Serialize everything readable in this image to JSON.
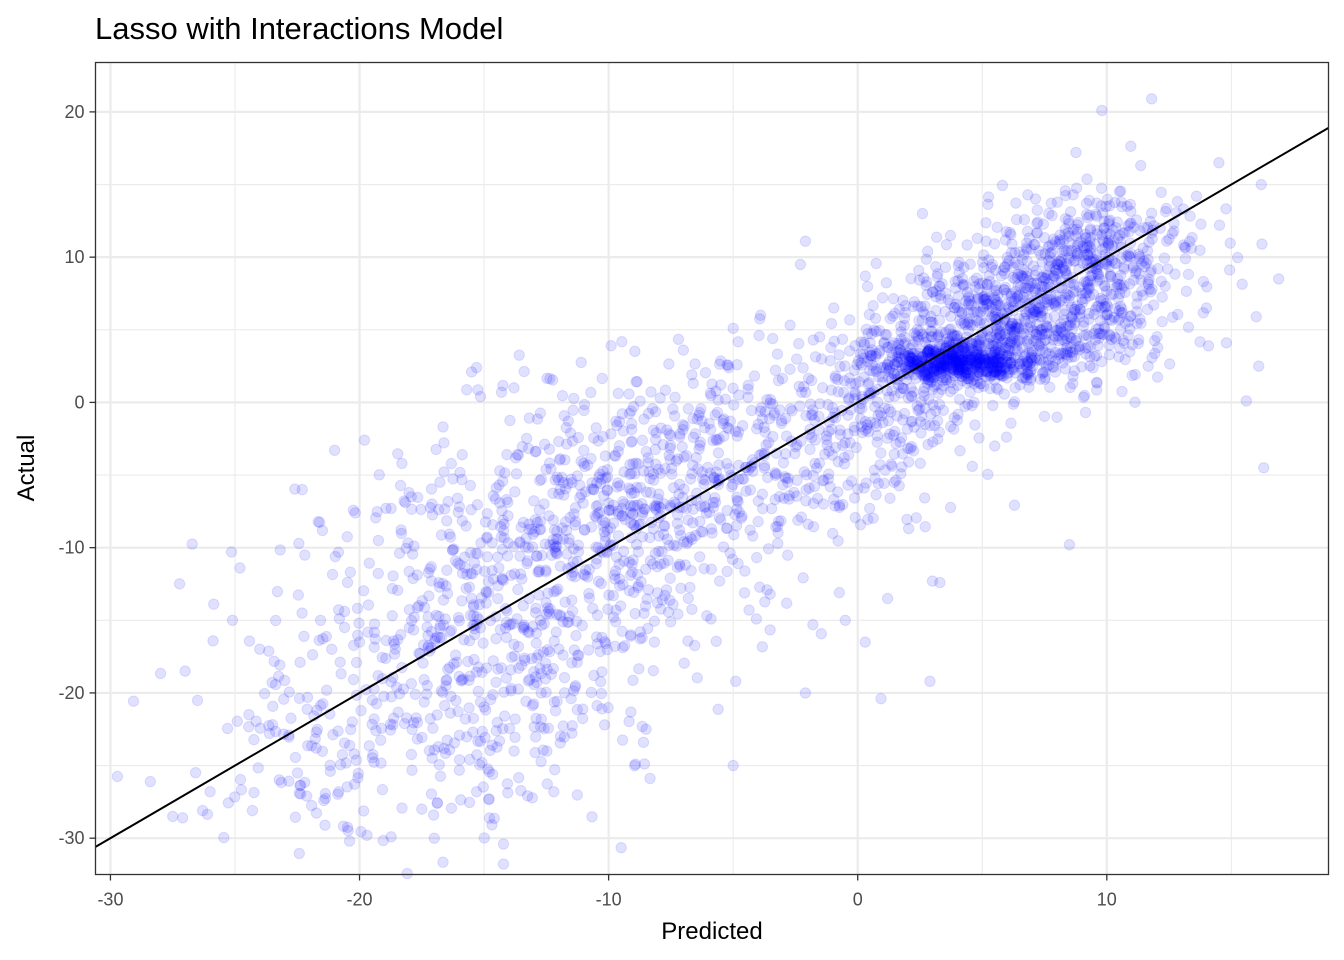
{
  "chart_data": {
    "type": "scatter",
    "title": "Lasso with Interactions Model",
    "xlabel": "Predicted",
    "ylabel": "Actual",
    "xlim": [
      -30.6,
      18.9
    ],
    "ylim": [
      -32.5,
      23.4
    ],
    "x_ticks": [
      -30,
      -20,
      -10,
      0,
      10
    ],
    "y_ticks": [
      -30,
      -20,
      -10,
      0,
      10,
      20
    ],
    "x_tick_labels": [
      "-30",
      "-20",
      "-10",
      "0",
      "10"
    ],
    "y_tick_labels": [
      "-30",
      "-20",
      "-10",
      "0",
      "10",
      "20"
    ],
    "grid": true,
    "point_color": "#0000ff",
    "point_opacity": 0.12,
    "reference_line": {
      "slope": 1,
      "intercept": 0,
      "color": "#000000"
    },
    "clusters": [
      {
        "center": [
          4.0,
          2.8
        ],
        "spread": [
          1.6,
          0.7
        ],
        "count": 520
      },
      {
        "center": [
          6.5,
          5.5
        ],
        "spread": [
          2.6,
          2.4
        ],
        "count": 700
      },
      {
        "center": [
          9.5,
          10.0
        ],
        "spread": [
          2.2,
          2.3
        ],
        "count": 380
      },
      {
        "center": [
          1.5,
          1.0
        ],
        "spread": [
          2.0,
          3.0
        ],
        "count": 180
      },
      {
        "center": [
          -3.0,
          -3.0
        ],
        "spread": [
          3.5,
          3.5
        ],
        "count": 300
      },
      {
        "center": [
          -9.0,
          -7.0
        ],
        "spread": [
          3.5,
          4.0
        ],
        "count": 450
      },
      {
        "center": [
          -14.0,
          -13.0
        ],
        "spread": [
          4.0,
          5.5
        ],
        "count": 480
      },
      {
        "center": [
          -18.0,
          -22.0
        ],
        "spread": [
          4.0,
          4.0
        ],
        "count": 300
      }
    ],
    "points": [
      [
        11.8,
        20.9
      ],
      [
        9.8,
        20.1
      ],
      [
        16.2,
        15.0
      ],
      [
        16.9,
        8.5
      ],
      [
        16.0,
        5.9
      ],
      [
        16.1,
        2.5
      ],
      [
        15.6,
        0.1
      ],
      [
        16.3,
        -4.5
      ],
      [
        14.8,
        4.1
      ],
      [
        14.5,
        16.5
      ],
      [
        13.6,
        14.2
      ],
      [
        14.0,
        6.5
      ],
      [
        -28.4,
        -26.1
      ],
      [
        -27.5,
        -28.5
      ],
      [
        -27.1,
        -28.6
      ],
      [
        -27.0,
        -18.5
      ],
      [
        -26.3,
        -28.1
      ],
      [
        -26.0,
        -26.8
      ],
      [
        -25.1,
        -15.0
      ],
      [
        -24.8,
        -11.4
      ],
      [
        -24.3,
        -28.1
      ],
      [
        -22.3,
        -6.0
      ],
      [
        -21.0,
        -3.3
      ],
      [
        -19.8,
        -2.6
      ],
      [
        -15.3,
        2.4
      ],
      [
        -15.5,
        2.1
      ],
      [
        -14.3,
        0.7
      ],
      [
        -13.8,
        1.0
      ],
      [
        -9.9,
        3.9
      ],
      [
        -7.0,
        3.6
      ],
      [
        -5.0,
        5.1
      ],
      [
        -3.9,
        6.0
      ],
      [
        -2.1,
        11.1
      ],
      [
        -2.3,
        9.5
      ],
      [
        1.0,
        7.2
      ],
      [
        2.6,
        13.0
      ],
      [
        8.5,
        -9.8
      ],
      [
        5.5,
        -3.0
      ],
      [
        3.0,
        -12.3
      ],
      [
        2.9,
        -19.2
      ],
      [
        0.3,
        -16.5
      ],
      [
        -2.1,
        -20.0
      ],
      [
        -4.9,
        -19.2
      ],
      [
        -8.6,
        -23.4
      ],
      [
        -5.0,
        -25.0
      ],
      [
        -12.2,
        -26.8
      ],
      [
        -17.0,
        -30.0
      ],
      [
        -20.4,
        -30.2
      ],
      [
        -19.7,
        -29.8
      ],
      [
        -17.5,
        -28.0
      ],
      [
        -14.8,
        -27.3
      ],
      [
        -15.3,
        -26.8
      ],
      [
        1.2,
        -13.5
      ],
      [
        -0.5,
        -15.0
      ],
      [
        -1.8,
        -15.3
      ],
      [
        3.3,
        -12.4
      ],
      [
        4.6,
        -4.4
      ],
      [
        7.6,
        6.9
      ],
      [
        9.3,
        13.9
      ],
      [
        12.4,
        11.1
      ]
    ]
  }
}
